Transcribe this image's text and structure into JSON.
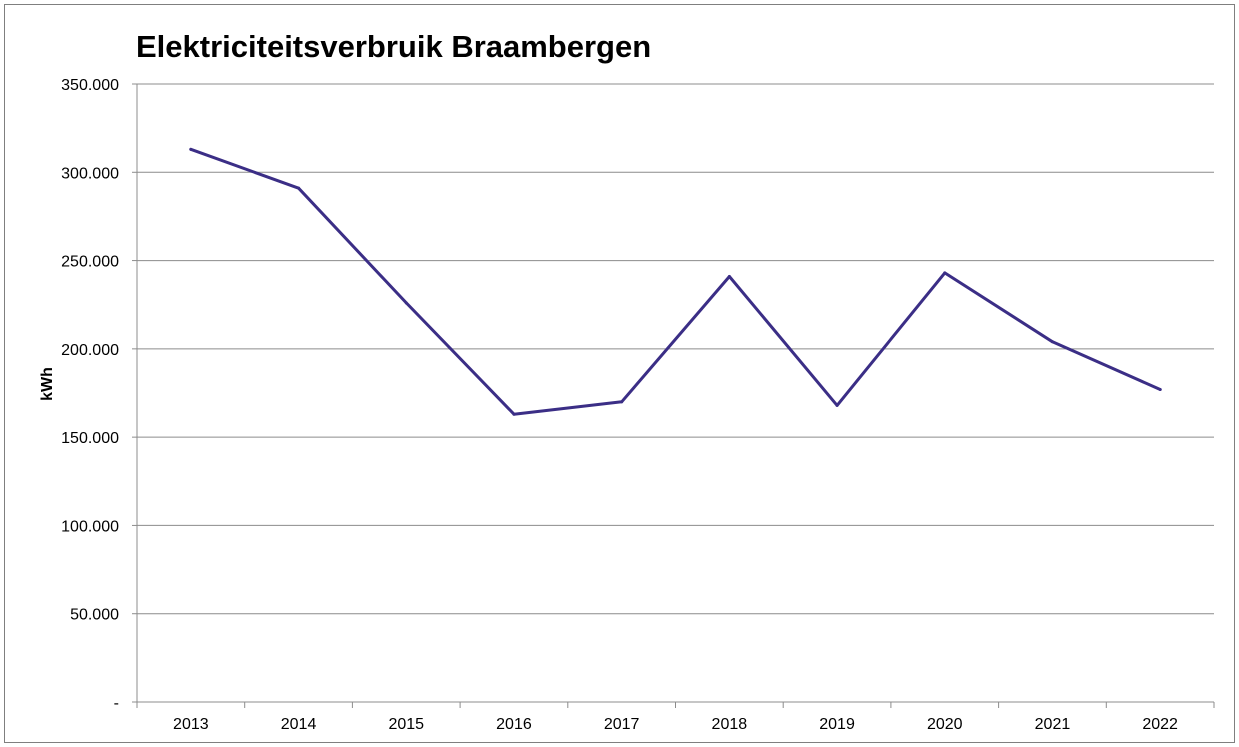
{
  "chart_data": {
    "type": "line",
    "title": "Elektriciteitsverbruik Braambergen",
    "xlabel": "",
    "ylabel": "kWh",
    "categories": [
      "2013",
      "2014",
      "2015",
      "2016",
      "2017",
      "2018",
      "2019",
      "2020",
      "2021",
      "2022"
    ],
    "series": [
      {
        "values": [
          313000,
          291000,
          226000,
          163000,
          170000,
          241000,
          168000,
          243000,
          204000,
          177000
        ]
      }
    ],
    "ylim": [
      0,
      350000
    ],
    "yticks": [
      0,
      50000,
      100000,
      150000,
      200000,
      250000,
      300000,
      350000
    ],
    "ytick_labels": [
      "-",
      "50.000",
      "100.000",
      "150.000",
      "200.000",
      "250.000",
      "300.000",
      "350.000"
    ],
    "grid": true,
    "legend": "none",
    "colors": {
      "line": "#3b2e86",
      "grid": "#8c8c8c",
      "axis": "#8c8c8c",
      "frame": "#7f7f7f"
    }
  }
}
